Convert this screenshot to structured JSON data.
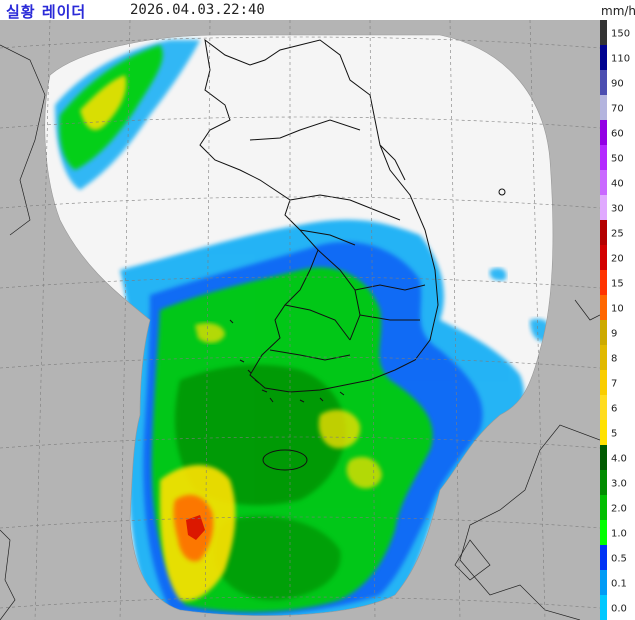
{
  "header": {
    "title": "실황 레이더",
    "timestamp": "2026.04.03.22:40",
    "unit": "mm/h"
  },
  "legend": {
    "labels": [
      "150",
      "110",
      "90",
      "70",
      "60",
      "50",
      "40",
      "30",
      "25",
      "20",
      "15",
      "10",
      "9",
      "8",
      "7",
      "6",
      "5",
      "4.0",
      "3.0",
      "2.0",
      "1.0",
      "0.5",
      "0.1",
      "0.0"
    ],
    "colors": [
      "#333333",
      "#000390",
      "#4c4eb1",
      "#b3b4de",
      "#9300e4",
      "#b329ff",
      "#c969ff",
      "#e0a9ff",
      "#b40000",
      "#d20000",
      "#ff3300",
      "#ff6600",
      "#ccaa00",
      "#e0b900",
      "#f9cd00",
      "#ffdc1f",
      "#ffe100",
      "#005a00",
      "#008c00",
      "#00be00",
      "#00ff00",
      "#0033f5",
      "#009bf5",
      "#00c8ff"
    ]
  },
  "colors": {
    "land": "#b4b4b4",
    "sea": "#b4b4b4",
    "radar_coverage": "#f5f5f5",
    "border_line": "#111111",
    "grid": "#8c8c8c"
  }
}
